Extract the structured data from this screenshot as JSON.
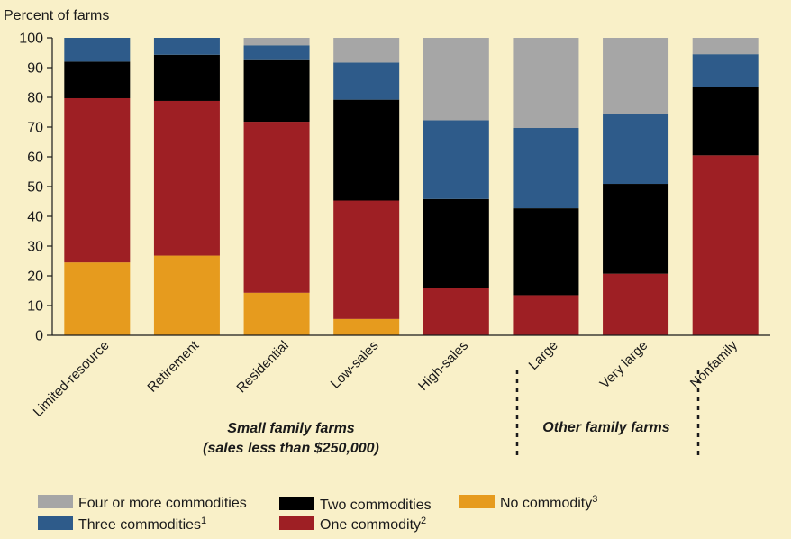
{
  "chart_data": {
    "type": "bar",
    "stacked": true,
    "ylabel": "Percent of farms",
    "ylim": [
      0,
      100
    ],
    "yticks": [
      0,
      10,
      20,
      30,
      40,
      50,
      60,
      70,
      80,
      90,
      100
    ],
    "grid": false,
    "categories": [
      "Limited-resource",
      "Retirement",
      "Residential",
      "Low-sales",
      "High-sales",
      "Large",
      "Very large",
      "Nonfamily"
    ],
    "series": [
      {
        "name": "No commodity",
        "superscript": "3",
        "color": "#e69b1e",
        "values": [
          24.5,
          26.8,
          14.3,
          5.5,
          0,
          0,
          0,
          0
        ]
      },
      {
        "name": "One commodity",
        "superscript": "2",
        "color": "#9e1f24",
        "values": [
          55.2,
          52.0,
          57.5,
          39.8,
          16.0,
          13.5,
          20.7,
          60.5
        ]
      },
      {
        "name": "Two commodities",
        "superscript": "",
        "color": "#000000",
        "values": [
          12.3,
          15.5,
          20.7,
          33.9,
          29.8,
          29.2,
          30.2,
          23.0
        ]
      },
      {
        "name": "Three commodities",
        "superscript": "1",
        "color": "#2e5b8a",
        "values": [
          8.0,
          5.7,
          5.0,
          12.5,
          26.5,
          27.0,
          23.4,
          11.0
        ]
      },
      {
        "name": "Four or more commodities",
        "superscript": "",
        "color": "#a6a6a6",
        "values": [
          0,
          0,
          2.5,
          8.3,
          27.7,
          30.3,
          25.7,
          5.5
        ]
      }
    ],
    "groups": [
      {
        "label_line1": "Small family farms",
        "label_line2": "(sales less than $250,000)"
      },
      {
        "label_line1": "Other family farms",
        "label_line2": ""
      }
    ],
    "legend_position": "bottom"
  }
}
